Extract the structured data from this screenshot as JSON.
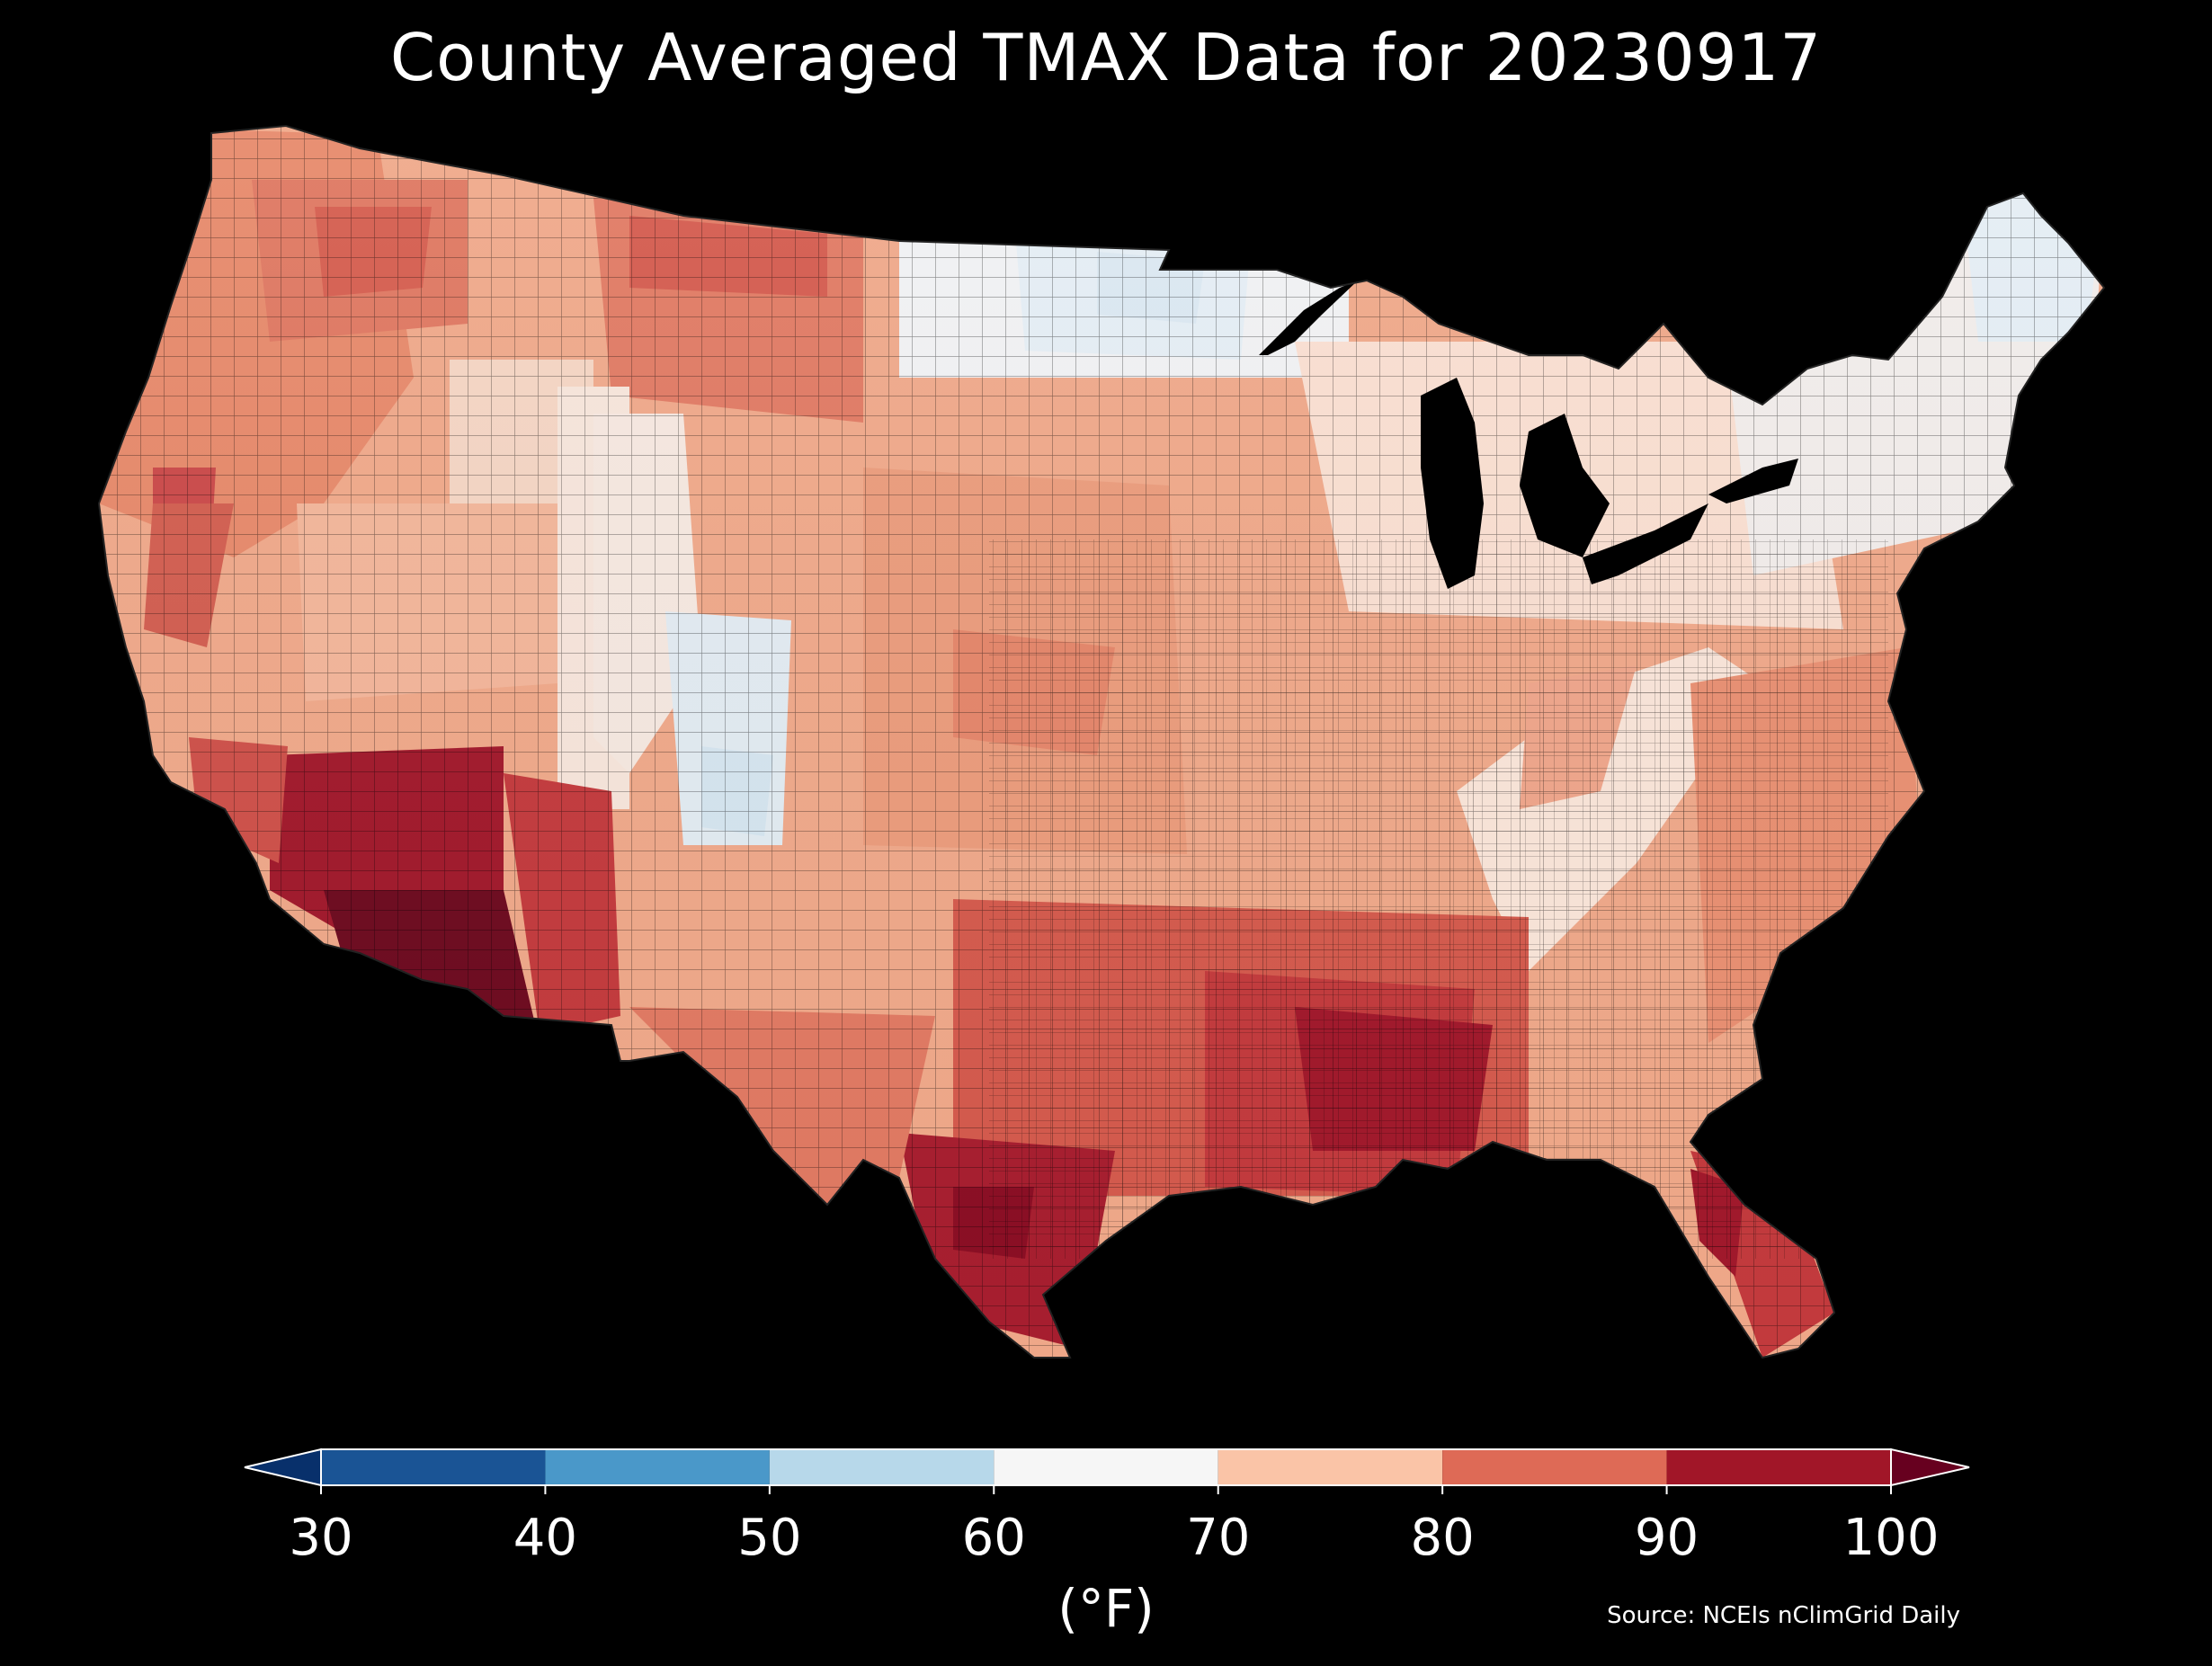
{
  "title": "County Averaged TMAX Data for 20230917",
  "source": "Source: NCEIs nClimGrid Daily",
  "colorbar": {
    "unit_label": "(°F)",
    "ticks": [
      "30",
      "40",
      "50",
      "60",
      "70",
      "80",
      "90",
      "100"
    ],
    "bins": [
      {
        "range": [
          30,
          40
        ],
        "color": "#1a5495"
      },
      {
        "range": [
          40,
          50
        ],
        "color": "#4a98c9"
      },
      {
        "range": [
          50,
          60
        ],
        "color": "#b7d8ea"
      },
      {
        "range": [
          60,
          70
        ],
        "color": "#f6f6f6"
      },
      {
        "range": [
          70,
          80
        ],
        "color": "#fac4a7"
      },
      {
        "range": [
          80,
          90
        ],
        "color": "#de6a56"
      },
      {
        "range": [
          90,
          100
        ],
        "color": "#a11628"
      }
    ],
    "under_color": "#08306b",
    "over_color": "#67001f",
    "extend": "both"
  },
  "map": {
    "type": "choropleth",
    "region": "Contiguous United States",
    "units": "counties",
    "variable": "TMAX",
    "regional_fill_colors": {
      "coldest_west_mountains": "#dde9f2",
      "northern_plains_and_new_england": "#eef2f6",
      "cool_pacific_northwest_interior": "#f7e9e1",
      "warm_mid_band": "#f4b99c",
      "hot_midwest_plains": "#e8906f",
      "hot_south": "#c83b3b",
      "hottest_gulf_and_arizona": "#9a1426",
      "extreme_desert": "#6e0a1f"
    }
  }
}
